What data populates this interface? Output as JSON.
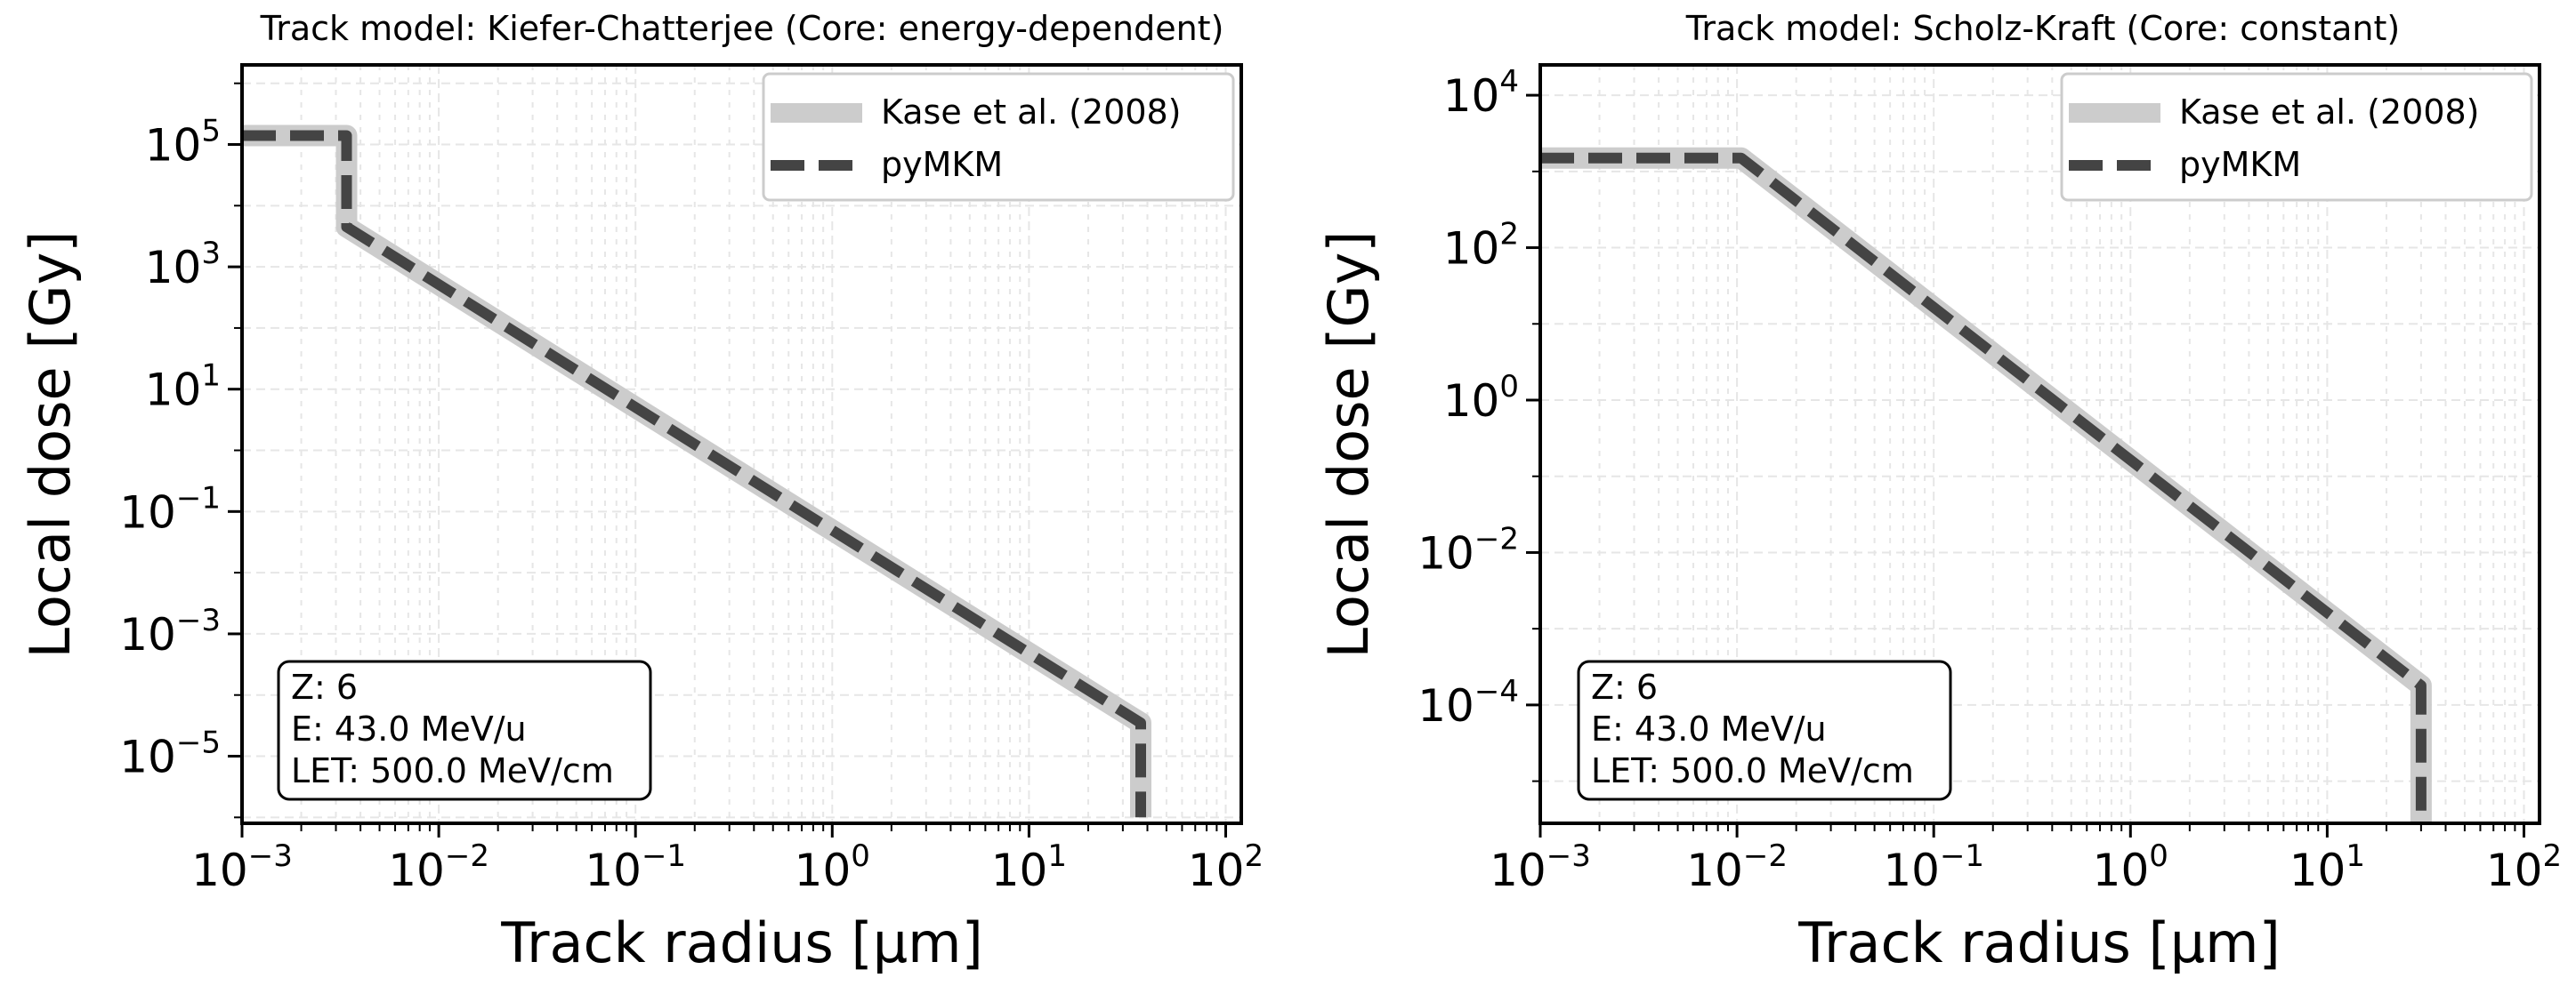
{
  "figure": {
    "colors": {
      "kase": "#cccccc",
      "pymkm": "#444444",
      "grid": "#e6e6e6",
      "axis": "#000000",
      "background": "#ffffff"
    }
  },
  "chart_data": [
    {
      "type": "line",
      "title": "Track model: Kiefer-Chatterjee (Core: energy-dependent)",
      "xlabel": "Track radius [μm]",
      "ylabel": "Local dose [Gy]",
      "xscale": "log",
      "yscale": "log",
      "xlim": [
        0.001,
        120
      ],
      "ylim": [
        8e-07,
        2000000.0
      ],
      "grid": true,
      "legend_position": "top-right",
      "x_ticks": [
        {
          "base": "10",
          "exp": "−3",
          "value": 0.001
        },
        {
          "base": "10",
          "exp": "−2",
          "value": 0.01
        },
        {
          "base": "10",
          "exp": "−1",
          "value": 0.1
        },
        {
          "base": "10",
          "exp": "0",
          "value": 1
        },
        {
          "base": "10",
          "exp": "1",
          "value": 10
        },
        {
          "base": "10",
          "exp": "2",
          "value": 100
        }
      ],
      "y_ticks": [
        {
          "base": "10",
          "exp": "−5",
          "value": 1e-05
        },
        {
          "base": "10",
          "exp": "−3",
          "value": 0.001
        },
        {
          "base": "10",
          "exp": "−1",
          "value": 0.1
        },
        {
          "base": "10",
          "exp": "1",
          "value": 10
        },
        {
          "base": "10",
          "exp": "3",
          "value": 1000
        },
        {
          "base": "10",
          "exp": "5",
          "value": 100000
        }
      ],
      "series": [
        {
          "name": "Kase et al. (2008)",
          "style": "solid-thick",
          "x": [
            0.001,
            0.0034,
            0.0034,
            37,
            37
          ],
          "y": [
            140000,
            140000,
            4500,
            3.5e-05,
            1e-06
          ]
        },
        {
          "name": "pyMKM",
          "style": "dashed",
          "x": [
            0.001,
            0.0034,
            0.0034,
            37,
            37
          ],
          "y": [
            140000,
            140000,
            4500,
            3.5e-05,
            1e-06
          ]
        }
      ],
      "info_box": [
        "Z: 6",
        "E: 43.0 MeV/u",
        "LET: 500.0 MeV/cm"
      ]
    },
    {
      "type": "line",
      "title": "Track model: Scholz-Kraft (Core: constant)",
      "xlabel": "Track radius [μm]",
      "ylabel": "Local dose [Gy]",
      "xscale": "log",
      "yscale": "log",
      "xlim": [
        0.001,
        120
      ],
      "ylim": [
        2.8e-06,
        25000
      ],
      "grid": true,
      "legend_position": "top-right",
      "x_ticks": [
        {
          "base": "10",
          "exp": "−3",
          "value": 0.001
        },
        {
          "base": "10",
          "exp": "−2",
          "value": 0.01
        },
        {
          "base": "10",
          "exp": "−1",
          "value": 0.1
        },
        {
          "base": "10",
          "exp": "0",
          "value": 1
        },
        {
          "base": "10",
          "exp": "1",
          "value": 10
        },
        {
          "base": "10",
          "exp": "2",
          "value": 100
        }
      ],
      "y_ticks": [
        {
          "base": "10",
          "exp": "−4",
          "value": 0.0001
        },
        {
          "base": "10",
          "exp": "−2",
          "value": 0.01
        },
        {
          "base": "10",
          "exp": "0",
          "value": 1
        },
        {
          "base": "10",
          "exp": "2",
          "value": 100
        },
        {
          "base": "10",
          "exp": "4",
          "value": 10000
        }
      ],
      "series": [
        {
          "name": "Kase et al. (2008)",
          "style": "solid-thick",
          "x": [
            0.001,
            0.0105,
            30,
            30
          ],
          "y": [
            1500,
            1500,
            0.00018,
            2.8e-06
          ]
        },
        {
          "name": "pyMKM",
          "style": "dashed",
          "x": [
            0.001,
            0.0105,
            30,
            30
          ],
          "y": [
            1500,
            1500,
            0.00018,
            2.8e-06
          ]
        }
      ],
      "info_box": [
        "Z: 6",
        "E: 43.0 MeV/u",
        "LET: 500.0 MeV/cm"
      ]
    }
  ]
}
